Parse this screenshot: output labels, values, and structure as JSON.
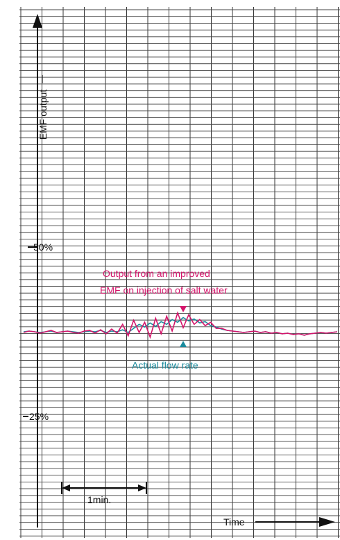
{
  "chart_data": {
    "type": "line",
    "title": "",
    "ylabel": "EMF output",
    "xlabel": "Time",
    "y_ticks": [
      {
        "label": "50%",
        "value": 50
      },
      {
        "label": "25%",
        "value": 25
      }
    ],
    "ylim": [
      0,
      100
    ],
    "grid": true,
    "scale_marker": {
      "label": "1min."
    },
    "series": [
      {
        "name": "Actual flow rate",
        "color": "#1a8a9c",
        "y": [
          37.5,
          37.6,
          37.5,
          37.4,
          37.5,
          37.6,
          37.4,
          37.5,
          37.6,
          37.5,
          37.4,
          37.5,
          37.6,
          37.5,
          37.7,
          37.4,
          37.6,
          37.5,
          37.8,
          37.4,
          38.0,
          38.6,
          38.2,
          38.8,
          38.3,
          39.0,
          38.6,
          39.3,
          38.9,
          39.6,
          39.1,
          39.4,
          38.8,
          39.0,
          38.4,
          38.2,
          37.9,
          37.7,
          37.6,
          37.5,
          37.4,
          37.5,
          37.6,
          37.4,
          37.5,
          37.3,
          37.4,
          37.2,
          37.3,
          37.1,
          37.2,
          37.0,
          37.2,
          37.3,
          37.4,
          37.3,
          37.4,
          37.5
        ]
      },
      {
        "name": "Output from an improved EMF on injection of salt water",
        "color": "#d4146a",
        "y": [
          37.4,
          37.6,
          37.5,
          37.3,
          37.5,
          37.7,
          37.4,
          37.5,
          37.6,
          37.4,
          37.3,
          37.6,
          37.7,
          37.3,
          37.8,
          37.2,
          37.9,
          37.3,
          38.6,
          36.9,
          39.2,
          37.4,
          38.9,
          36.7,
          39.5,
          37.2,
          39.8,
          37.6,
          40.3,
          38.1,
          40.0,
          38.6,
          39.3,
          38.4,
          38.9,
          38.0,
          38.0,
          37.7,
          37.6,
          37.5,
          37.4,
          37.5,
          37.6,
          37.4,
          37.5,
          37.3,
          37.4,
          37.2,
          37.3,
          37.1,
          37.2,
          37.0,
          37.2,
          37.3,
          37.4,
          37.3,
          37.4,
          37.5
        ]
      }
    ],
    "annotations": {
      "improved_line1": "Output from an improved",
      "improved_line2": "EMF on injection of salt water",
      "flow": "Actual flow rate"
    }
  }
}
